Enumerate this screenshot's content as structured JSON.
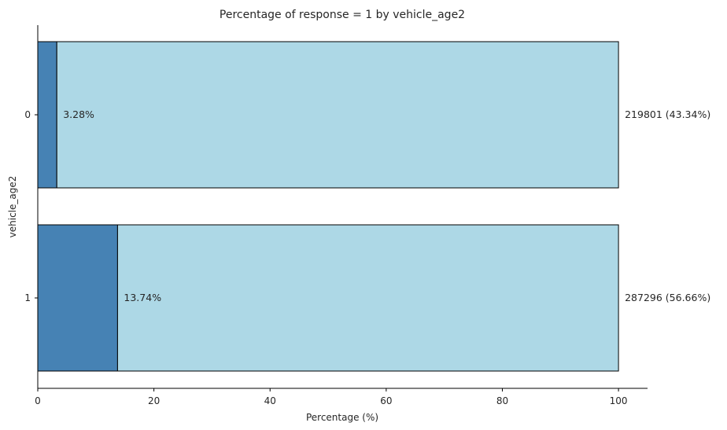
{
  "chart_data": {
    "type": "bar",
    "orientation": "horizontal",
    "stacked": true,
    "title": "Percentage of response = 1 by vehicle_age2",
    "xlabel": "Percentage (%)",
    "ylabel": "vehicle_age2",
    "categories": [
      "0",
      "1"
    ],
    "series": [
      {
        "values": [
          3.28,
          13.74
        ],
        "color": "#4682b4"
      },
      {
        "values": [
          96.72,
          86.26
        ],
        "color": "#add8e6"
      }
    ],
    "bar_labels": [
      "3.28%",
      "13.74%"
    ],
    "count_labels": [
      "219801 (43.34%)",
      "287296 (56.66%)"
    ],
    "xlim": [
      0,
      105
    ],
    "xticks": [
      0,
      20,
      40,
      60,
      80,
      100
    ],
    "xtick_labels": [
      "0",
      "20",
      "40",
      "60",
      "80",
      "100"
    ],
    "grid": false,
    "legend": false,
    "colors": {
      "edge": "#000000",
      "axis": "#000000",
      "text": "#262626"
    }
  }
}
